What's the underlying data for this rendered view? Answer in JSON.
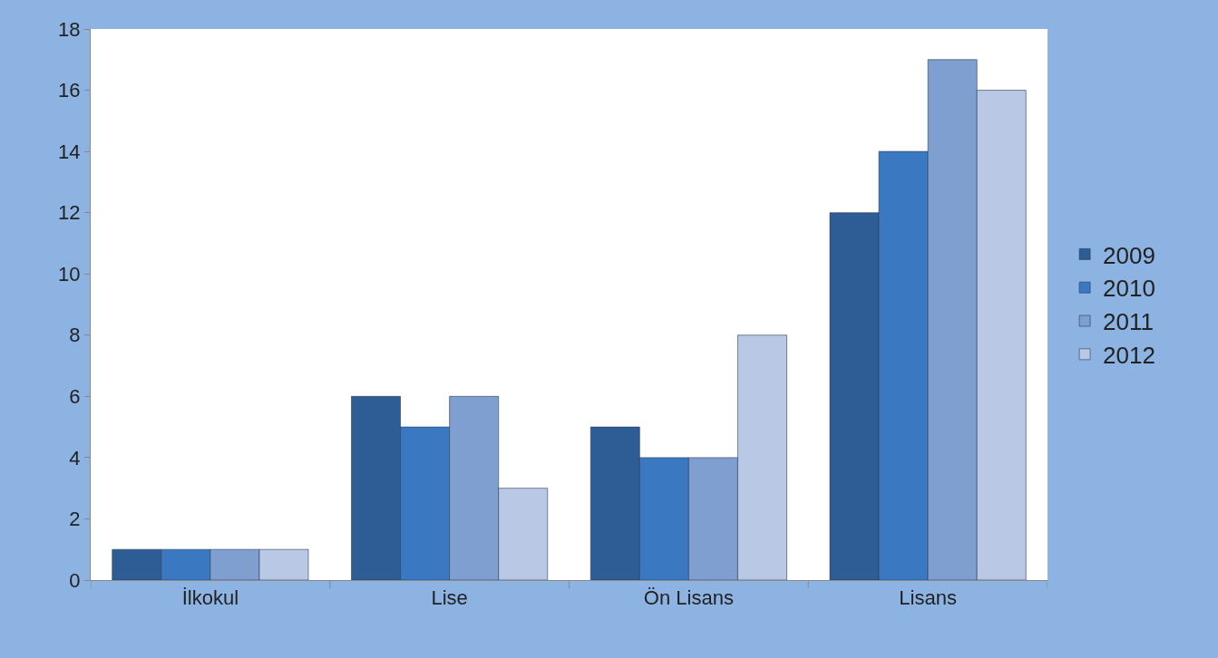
{
  "chart_data": {
    "type": "bar",
    "categories": [
      "İlkokul",
      "Lise",
      "Ön Lisans",
      "Lisans"
    ],
    "series": [
      {
        "name": "2009",
        "color": "#2e5c94",
        "values": [
          1,
          6,
          5,
          12
        ]
      },
      {
        "name": "2010",
        "color": "#3b78c2",
        "values": [
          1,
          5,
          4,
          14
        ]
      },
      {
        "name": "2011",
        "color": "#7f9fd0",
        "values": [
          1,
          6,
          4,
          17
        ]
      },
      {
        "name": "2012",
        "color": "#b9c8e4",
        "values": [
          1,
          3,
          8,
          16
        ]
      }
    ],
    "ylim": [
      0,
      18
    ],
    "yticks": [
      0,
      2,
      4,
      6,
      8,
      10,
      12,
      14,
      16,
      18
    ],
    "grid": false,
    "legend": "right"
  }
}
